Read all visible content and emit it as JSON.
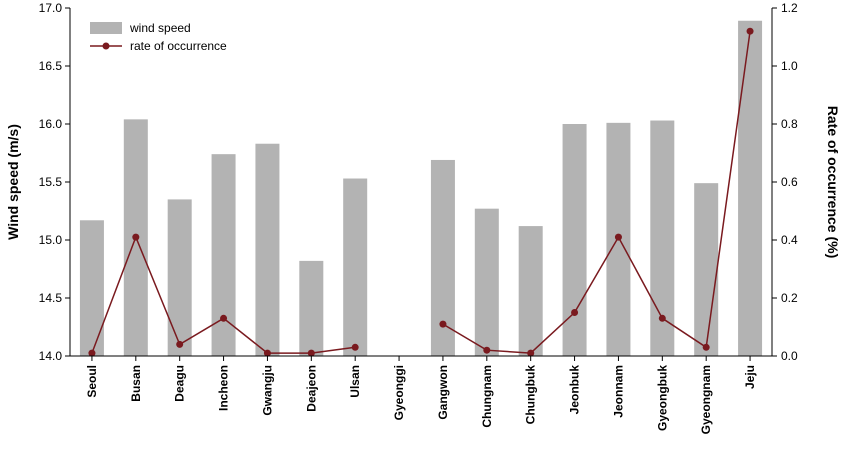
{
  "chart_data": {
    "type": "bar",
    "categories": [
      "Seoul",
      "Busan",
      "Deagu",
      "Incheon",
      "Gwangju",
      "Deajeon",
      "Ulsan",
      "Gyeonggi",
      "Gangwon",
      "Chungnam",
      "Chungbuk",
      "Jeonbuk",
      "Jeonnam",
      "Gyeongbuk",
      "Gyeongnam",
      "Jeju"
    ],
    "series": [
      {
        "name": "wind speed",
        "kind": "bar",
        "axis": "left",
        "color": "#b3b3b3",
        "values": [
          15.17,
          16.04,
          15.35,
          15.74,
          15.83,
          14.82,
          15.53,
          null,
          15.69,
          15.27,
          15.12,
          16.0,
          16.01,
          16.03,
          15.49,
          16.89
        ]
      },
      {
        "name": "rate of occurrence",
        "kind": "line",
        "axis": "right",
        "color": "#7a1a1f",
        "values": [
          0.01,
          0.41,
          0.04,
          0.13,
          0.01,
          0.01,
          0.03,
          null,
          0.11,
          0.02,
          0.01,
          0.15,
          0.41,
          0.13,
          0.03,
          1.12
        ]
      }
    ],
    "ylabel": "Wind speed (m/s)",
    "y2label": "Rate of occurrence (%)",
    "ylim": [
      14.0,
      17.0
    ],
    "y2lim": [
      0.0,
      1.2
    ],
    "yticks": [
      "14.0",
      "14.5",
      "15.0",
      "15.5",
      "16.0",
      "16.5",
      "17.0"
    ],
    "y2ticks": [
      "0.0",
      "0.2",
      "0.4",
      "0.6",
      "0.8",
      "1.0",
      "1.2"
    ],
    "legend_position": "top-left",
    "grid": false
  }
}
